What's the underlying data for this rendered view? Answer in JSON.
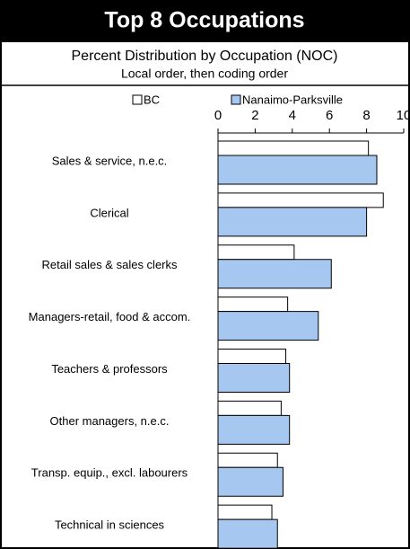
{
  "chart_data": {
    "type": "hbar",
    "title": "Top 8 Occupations",
    "subtitle": "Percent Distribution by Occupation (NOC)",
    "note": "Local order, then coding order",
    "categories": [
      "Sales & service, n.e.c.",
      "Clerical",
      "Retail sales & sales clerks",
      "Managers-retail, food & accom.",
      "Teachers & professors",
      "Other managers, n.e.c.",
      "Transp. equip., excl. labourers",
      "Technical in sciences"
    ],
    "series": [
      {
        "name": "BC",
        "color": "#ffffff",
        "values": [
          8.1,
          8.9,
          4.1,
          3.75,
          3.65,
          3.4,
          3.2,
          2.9
        ]
      },
      {
        "name": "Nanaimo-Parksville",
        "color": "#a6c8f0",
        "values": [
          8.55,
          8.0,
          6.1,
          5.4,
          3.85,
          3.85,
          3.5,
          3.2
        ]
      }
    ],
    "xlim": [
      0,
      10
    ],
    "xticks": [
      0,
      2,
      4,
      6,
      8,
      10
    ]
  }
}
